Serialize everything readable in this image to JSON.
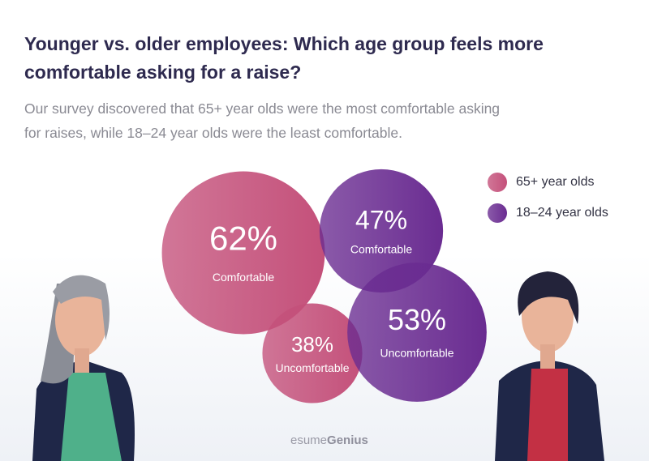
{
  "chart_data": {
    "type": "bubble",
    "title": "Younger vs. older employees: Which age group feels more",
    "title_line2": "comfortable asking for a raise?",
    "subtitle": "Our survey discovered that 65+ year olds were the most comfortable asking",
    "subtitle_line2": "for raises, while 18–24 year olds were the least comfortable.",
    "categories": [
      "Comfortable",
      "Uncomfortable"
    ],
    "series": [
      {
        "name": "65+ year olds",
        "color": "#c4507a",
        "values": [
          62,
          38
        ],
        "value_labels": [
          "62%",
          "38%"
        ]
      },
      {
        "name": "18–24 year olds",
        "color": "#6a2c91",
        "values": [
          47,
          53
        ],
        "value_labels": [
          "47%",
          "53%"
        ]
      }
    ],
    "legend": "top-right",
    "brand_light": "esume",
    "brand_bold": "Genius"
  }
}
